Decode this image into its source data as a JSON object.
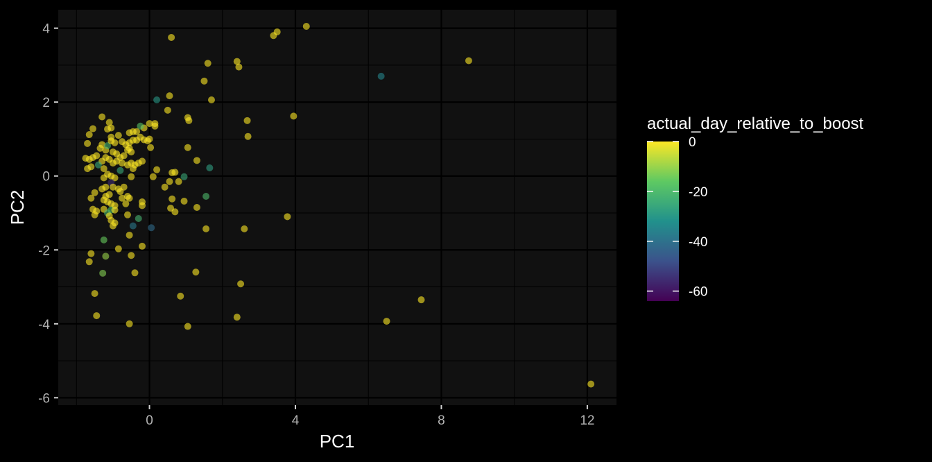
{
  "chart_data": {
    "type": "scatter",
    "xlabel": "PC1",
    "ylabel": "PC2",
    "xlim": [
      -2.5,
      12.8
    ],
    "ylim": [
      -6.2,
      4.5
    ],
    "xticks": [
      0,
      4,
      8,
      12
    ],
    "yticks": [
      4,
      2,
      0,
      -2,
      -4,
      -6
    ],
    "grid": true,
    "legend": {
      "title": "actual_day_relative_to_boost",
      "placement": "right",
      "type": "colorbar",
      "range": [
        -64,
        0
      ],
      "ticks": [
        0,
        -20,
        -40,
        -60
      ]
    },
    "palette": [
      "#440154",
      "#3b528b",
      "#21918c",
      "#5ec962",
      "#fde725"
    ],
    "points": [
      {
        "x": 3.5,
        "y": 3.9,
        "c": 0
      },
      {
        "x": 3.4,
        "y": 3.8,
        "c": 0
      },
      {
        "x": 4.3,
        "y": 4.05,
        "c": 0
      },
      {
        "x": 0.6,
        "y": 3.75,
        "c": 0
      },
      {
        "x": 2.4,
        "y": 3.1,
        "c": 0
      },
      {
        "x": 2.45,
        "y": 2.95,
        "c": 0
      },
      {
        "x": 1.6,
        "y": 3.05,
        "c": 0
      },
      {
        "x": 8.75,
        "y": 3.12,
        "c": 0
      },
      {
        "x": 6.35,
        "y": 2.7,
        "c": -35
      },
      {
        "x": 1.5,
        "y": 2.57,
        "c": 0
      },
      {
        "x": 0.55,
        "y": 2.17,
        "c": 0
      },
      {
        "x": 0.2,
        "y": 2.06,
        "c": -30
      },
      {
        "x": 1.7,
        "y": 2.06,
        "c": 0
      },
      {
        "x": 0.5,
        "y": 1.78,
        "c": 0
      },
      {
        "x": 3.95,
        "y": 1.62,
        "c": 0
      },
      {
        "x": 1.05,
        "y": 1.58,
        "c": 0
      },
      {
        "x": 1.08,
        "y": 1.5,
        "c": 0
      },
      {
        "x": 2.68,
        "y": 1.5,
        "c": 0
      },
      {
        "x": 2.7,
        "y": 1.07,
        "c": 0
      },
      {
        "x": 1.05,
        "y": 0.77,
        "c": 0
      },
      {
        "x": 1.3,
        "y": 0.42,
        "c": 0
      },
      {
        "x": 1.65,
        "y": 0.22,
        "c": -28
      },
      {
        "x": 0.7,
        "y": 0.1,
        "c": 0
      },
      {
        "x": 0.62,
        "y": 0.09,
        "c": 0
      },
      {
        "x": 0.95,
        "y": -0.02,
        "c": -25
      },
      {
        "x": 0.55,
        "y": -0.15,
        "c": 0
      },
      {
        "x": 0.8,
        "y": -0.15,
        "c": 0
      },
      {
        "x": 0.42,
        "y": -0.3,
        "c": 0
      },
      {
        "x": 1.55,
        "y": -0.55,
        "c": -20
      },
      {
        "x": 0.62,
        "y": -0.62,
        "c": 0
      },
      {
        "x": 0.95,
        "y": -0.68,
        "c": 0
      },
      {
        "x": 0.58,
        "y": -0.87,
        "c": 0
      },
      {
        "x": 0.7,
        "y": -0.97,
        "c": 0
      },
      {
        "x": 1.3,
        "y": -0.85,
        "c": 0
      },
      {
        "x": 3.78,
        "y": -1.1,
        "c": 0
      },
      {
        "x": 1.55,
        "y": -1.43,
        "c": 0
      },
      {
        "x": 2.6,
        "y": -1.43,
        "c": 0
      },
      {
        "x": 1.27,
        "y": -2.6,
        "c": 0
      },
      {
        "x": 2.5,
        "y": -2.92,
        "c": 0
      },
      {
        "x": 0.85,
        "y": -3.25,
        "c": 0
      },
      {
        "x": 2.4,
        "y": -3.82,
        "c": 0
      },
      {
        "x": 1.05,
        "y": -4.07,
        "c": 0
      },
      {
        "x": -0.55,
        "y": -4.0,
        "c": 0
      },
      {
        "x": -1.45,
        "y": -3.78,
        "c": 0
      },
      {
        "x": -1.5,
        "y": -3.18,
        "c": 0
      },
      {
        "x": 6.5,
        "y": -3.93,
        "c": 0
      },
      {
        "x": 7.45,
        "y": -3.35,
        "c": 0
      },
      {
        "x": 12.1,
        "y": -5.63,
        "c": 0
      },
      {
        "x": 0.2,
        "y": 0.17,
        "c": 0
      },
      {
        "x": 0.1,
        "y": -0.02,
        "c": 0
      },
      {
        "x": 0.03,
        "y": 0.77,
        "c": 0
      },
      {
        "x": 0.0,
        "y": 1.0,
        "c": 0
      },
      {
        "x": 0.0,
        "y": 1.42,
        "c": 0
      },
      {
        "x": 0.15,
        "y": 1.42,
        "c": 0
      },
      {
        "x": 0.15,
        "y": 1.35,
        "c": 0
      },
      {
        "x": -0.15,
        "y": 1.3,
        "c": 0
      },
      {
        "x": -0.25,
        "y": 1.35,
        "c": -18
      },
      {
        "x": -0.35,
        "y": 1.2,
        "c": 0
      },
      {
        "x": -0.45,
        "y": 1.2,
        "c": 0
      },
      {
        "x": -0.55,
        "y": 1.17,
        "c": 0
      },
      {
        "x": -0.25,
        "y": 1.05,
        "c": 0
      },
      {
        "x": -0.15,
        "y": 0.98,
        "c": 0
      },
      {
        "x": -0.05,
        "y": 0.95,
        "c": 0
      },
      {
        "x": -0.35,
        "y": 0.97,
        "c": 0
      },
      {
        "x": -0.45,
        "y": 0.97,
        "c": 0
      },
      {
        "x": -0.55,
        "y": 0.9,
        "c": 0
      },
      {
        "x": -0.65,
        "y": 0.85,
        "c": 0
      },
      {
        "x": -0.75,
        "y": 0.93,
        "c": 0
      },
      {
        "x": -0.85,
        "y": 1.1,
        "c": 0
      },
      {
        "x": -0.95,
        "y": 0.9,
        "c": 0
      },
      {
        "x": -1.05,
        "y": 1.05,
        "c": 0
      },
      {
        "x": -1.15,
        "y": 1.27,
        "c": 0
      },
      {
        "x": -1.05,
        "y": 1.3,
        "c": 0
      },
      {
        "x": -1.1,
        "y": 1.45,
        "c": 0
      },
      {
        "x": -1.3,
        "y": 1.6,
        "c": 0
      },
      {
        "x": -1.55,
        "y": 1.28,
        "c": 0
      },
      {
        "x": -1.65,
        "y": 1.12,
        "c": 0
      },
      {
        "x": -1.7,
        "y": 0.88,
        "c": 0
      },
      {
        "x": -1.3,
        "y": 0.85,
        "c": 0
      },
      {
        "x": -1.35,
        "y": 0.75,
        "c": 0
      },
      {
        "x": -1.2,
        "y": 0.7,
        "c": 0
      },
      {
        "x": -1.15,
        "y": 0.82,
        "c": -22
      },
      {
        "x": -1.05,
        "y": 0.95,
        "c": 0
      },
      {
        "x": -1.0,
        "y": 0.65,
        "c": 0
      },
      {
        "x": -0.9,
        "y": 0.6,
        "c": 0
      },
      {
        "x": -0.8,
        "y": 0.5,
        "c": 0
      },
      {
        "x": -0.7,
        "y": 0.55,
        "c": 0
      },
      {
        "x": -0.6,
        "y": 0.7,
        "c": 0
      },
      {
        "x": -0.55,
        "y": 0.75,
        "c": 0
      },
      {
        "x": -0.5,
        "y": 0.65,
        "c": 0
      },
      {
        "x": -1.45,
        "y": 0.55,
        "c": 0
      },
      {
        "x": -1.55,
        "y": 0.5,
        "c": 0
      },
      {
        "x": -1.65,
        "y": 0.45,
        "c": 0
      },
      {
        "x": -1.75,
        "y": 0.48,
        "c": 0
      },
      {
        "x": -1.3,
        "y": 0.4,
        "c": 0
      },
      {
        "x": -1.2,
        "y": 0.5,
        "c": 0
      },
      {
        "x": -1.1,
        "y": 0.45,
        "c": 0
      },
      {
        "x": -1.0,
        "y": 0.35,
        "c": 0
      },
      {
        "x": -0.9,
        "y": 0.4,
        "c": 0
      },
      {
        "x": -0.75,
        "y": 0.35,
        "c": 0
      },
      {
        "x": -0.6,
        "y": 0.3,
        "c": 0
      },
      {
        "x": -0.5,
        "y": 0.35,
        "c": 0
      },
      {
        "x": -0.4,
        "y": 0.3,
        "c": 0
      },
      {
        "x": -0.3,
        "y": 0.35,
        "c": 0
      },
      {
        "x": -0.2,
        "y": 0.4,
        "c": 0
      },
      {
        "x": -0.45,
        "y": 0.2,
        "c": 0
      },
      {
        "x": -0.8,
        "y": 0.15,
        "c": -25
      },
      {
        "x": -1.4,
        "y": 0.3,
        "c": -25
      },
      {
        "x": -1.7,
        "y": 0.2,
        "c": 0
      },
      {
        "x": -1.6,
        "y": 0.25,
        "c": 0
      },
      {
        "x": -1.25,
        "y": 0.2,
        "c": 0
      },
      {
        "x": -1.15,
        "y": 0.05,
        "c": 0
      },
      {
        "x": -1.05,
        "y": 0.0,
        "c": 0
      },
      {
        "x": -0.95,
        "y": -0.05,
        "c": 0
      },
      {
        "x": -1.25,
        "y": -0.05,
        "c": 0
      },
      {
        "x": -0.5,
        "y": -0.02,
        "c": 0
      },
      {
        "x": -1.05,
        "y": -0.18,
        "c": -55
      },
      {
        "x": -1.0,
        "y": -0.3,
        "c": 0
      },
      {
        "x": -0.85,
        "y": -0.35,
        "c": 0
      },
      {
        "x": -0.7,
        "y": -0.3,
        "c": 0
      },
      {
        "x": -0.8,
        "y": -0.42,
        "c": 0
      },
      {
        "x": -1.2,
        "y": -0.3,
        "c": 0
      },
      {
        "x": -1.3,
        "y": -0.35,
        "c": 0
      },
      {
        "x": -1.5,
        "y": -0.45,
        "c": 0
      },
      {
        "x": -1.6,
        "y": -0.6,
        "c": 0
      },
      {
        "x": -1.2,
        "y": -0.55,
        "c": 0
      },
      {
        "x": -1.1,
        "y": -0.5,
        "c": 0
      },
      {
        "x": -1.25,
        "y": -0.65,
        "c": 0
      },
      {
        "x": -1.15,
        "y": -0.7,
        "c": 0
      },
      {
        "x": -1.05,
        "y": -0.75,
        "c": 0
      },
      {
        "x": -0.95,
        "y": -0.8,
        "c": 0
      },
      {
        "x": -0.75,
        "y": -0.6,
        "c": 0
      },
      {
        "x": -0.6,
        "y": -0.55,
        "c": 0
      },
      {
        "x": -0.55,
        "y": -0.6,
        "c": 0
      },
      {
        "x": -0.65,
        "y": -0.75,
        "c": 0
      },
      {
        "x": -0.2,
        "y": -0.7,
        "c": 0
      },
      {
        "x": -0.2,
        "y": -0.8,
        "c": 0
      },
      {
        "x": -1.55,
        "y": -0.9,
        "c": 0
      },
      {
        "x": -1.45,
        "y": -0.95,
        "c": 0
      },
      {
        "x": -1.5,
        "y": -1.05,
        "c": 0
      },
      {
        "x": -1.25,
        "y": -0.9,
        "c": 0
      },
      {
        "x": -1.15,
        "y": -1.0,
        "c": -20
      },
      {
        "x": -1.05,
        "y": -0.92,
        "c": -20
      },
      {
        "x": -0.95,
        "y": -0.92,
        "c": 0
      },
      {
        "x": -1.1,
        "y": -1.08,
        "c": 0
      },
      {
        "x": -1.05,
        "y": -1.2,
        "c": 0
      },
      {
        "x": -0.95,
        "y": -1.27,
        "c": 0
      },
      {
        "x": -1.0,
        "y": -1.35,
        "c": 0
      },
      {
        "x": -0.6,
        "y": -1.05,
        "c": 0
      },
      {
        "x": -0.3,
        "y": -1.15,
        "c": -22
      },
      {
        "x": -0.45,
        "y": -1.35,
        "c": -38
      },
      {
        "x": 0.05,
        "y": -1.4,
        "c": -42
      },
      {
        "x": -0.55,
        "y": -1.6,
        "c": 0
      },
      {
        "x": -1.25,
        "y": -1.73,
        "c": -15
      },
      {
        "x": -0.85,
        "y": -1.97,
        "c": 0
      },
      {
        "x": -0.2,
        "y": -1.9,
        "c": 0
      },
      {
        "x": -1.6,
        "y": -2.1,
        "c": 0
      },
      {
        "x": -1.65,
        "y": -2.32,
        "c": 0
      },
      {
        "x": -1.2,
        "y": -2.17,
        "c": -10
      },
      {
        "x": -0.5,
        "y": -2.15,
        "c": 0
      },
      {
        "x": -0.4,
        "y": -2.62,
        "c": 0
      },
      {
        "x": -1.28,
        "y": -2.63,
        "c": -12
      }
    ]
  }
}
